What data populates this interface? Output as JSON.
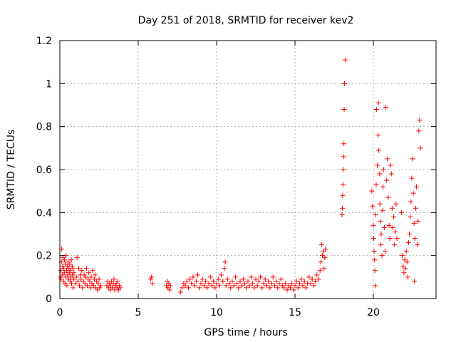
{
  "chart_data": {
    "type": "scatter",
    "title": "Day 251 of 2018, SRMTID for receiver kev2",
    "xlabel": "GPS time / hours",
    "ylabel": "SRMTID / TECUs",
    "xlim": [
      0,
      24
    ],
    "ylim": [
      0,
      1.2
    ],
    "xticks": [
      0,
      5,
      10,
      15,
      20
    ],
    "xtick_labels": [
      "0",
      "5",
      "10",
      "15",
      "20"
    ],
    "yticks": [
      0,
      0.2,
      0.4,
      0.6,
      0.8,
      1,
      1.2
    ],
    "ytick_labels": [
      "0",
      "0.2",
      "0.4",
      "0.6",
      "0.8",
      "1",
      "1.2"
    ],
    "grid": true,
    "marker": "+",
    "color": "#ff0000",
    "series": [
      {
        "name": "kev2",
        "points": [
          [
            0.02,
            0.1
          ],
          [
            0.05,
            0.13
          ],
          [
            0.08,
            0.09
          ],
          [
            0.1,
            0.17
          ],
          [
            0.12,
            0.23
          ],
          [
            0.15,
            0.11
          ],
          [
            0.18,
            0.15
          ],
          [
            0.2,
            0.19
          ],
          [
            0.23,
            0.08
          ],
          [
            0.25,
            0.14
          ],
          [
            0.28,
            0.12
          ],
          [
            0.3,
            0.18
          ],
          [
            0.33,
            0.07
          ],
          [
            0.35,
            0.16
          ],
          [
            0.38,
            0.1
          ],
          [
            0.4,
            0.2
          ],
          [
            0.43,
            0.13
          ],
          [
            0.45,
            0.06
          ],
          [
            0.48,
            0.15
          ],
          [
            0.5,
            0.11
          ],
          [
            0.53,
            0.17
          ],
          [
            0.55,
            0.09
          ],
          [
            0.58,
            0.14
          ],
          [
            0.6,
            0.12
          ],
          [
            0.63,
            0.16
          ],
          [
            0.65,
            0.08
          ],
          [
            0.68,
            0.13
          ],
          [
            0.7,
            0.1
          ],
          [
            0.73,
            0.18
          ],
          [
            0.75,
            0.07
          ],
          [
            0.78,
            0.15
          ],
          [
            0.8,
            0.11
          ],
          [
            0.83,
            0.14
          ],
          [
            0.85,
            0.05
          ],
          [
            0.88,
            0.09
          ],
          [
            0.9,
            0.12
          ],
          [
            1.0,
            0.07
          ],
          [
            1.05,
            0.1
          ],
          [
            1.1,
            0.19
          ],
          [
            1.15,
            0.08
          ],
          [
            1.2,
            0.14
          ],
          [
            1.25,
            0.06
          ],
          [
            1.3,
            0.11
          ],
          [
            1.35,
            0.09
          ],
          [
            1.4,
            0.13
          ],
          [
            1.45,
            0.05
          ],
          [
            1.5,
            0.08
          ],
          [
            1.55,
            0.11
          ],
          [
            1.6,
            0.07
          ],
          [
            1.65,
            0.1
          ],
          [
            1.7,
            0.14
          ],
          [
            1.75,
            0.06
          ],
          [
            1.8,
            0.09
          ],
          [
            1.85,
            0.12
          ],
          [
            1.9,
            0.08
          ],
          [
            1.95,
            0.05
          ],
          [
            2.0,
            0.1
          ],
          [
            2.05,
            0.07
          ],
          [
            2.1,
            0.13
          ],
          [
            2.15,
            0.06
          ],
          [
            2.2,
            0.09
          ],
          [
            2.25,
            0.11
          ],
          [
            2.3,
            0.05
          ],
          [
            2.35,
            0.08
          ],
          [
            2.4,
            0.04
          ],
          [
            2.45,
            0.07
          ],
          [
            2.5,
            0.09
          ],
          [
            2.55,
            0.05
          ],
          [
            2.6,
            0.06
          ],
          [
            3.0,
            0.06
          ],
          [
            3.05,
            0.08
          ],
          [
            3.1,
            0.05
          ],
          [
            3.15,
            0.07
          ],
          [
            3.2,
            0.04
          ],
          [
            3.25,
            0.06
          ],
          [
            3.3,
            0.08
          ],
          [
            3.35,
            0.05
          ],
          [
            3.4,
            0.07
          ],
          [
            3.45,
            0.09
          ],
          [
            3.5,
            0.04
          ],
          [
            3.55,
            0.06
          ],
          [
            3.6,
            0.07
          ],
          [
            3.65,
            0.05
          ],
          [
            3.7,
            0.08
          ],
          [
            3.75,
            0.04
          ],
          [
            3.8,
            0.06
          ],
          [
            3.85,
            0.05
          ],
          [
            5.8,
            0.09
          ],
          [
            5.85,
            0.1
          ],
          [
            5.9,
            0.07
          ],
          [
            6.8,
            0.06
          ],
          [
            6.85,
            0.08
          ],
          [
            6.9,
            0.05
          ],
          [
            6.95,
            0.07
          ],
          [
            7.0,
            0.04
          ],
          [
            7.05,
            0.06
          ],
          [
            7.7,
            0.03
          ],
          [
            7.8,
            0.05
          ],
          [
            7.9,
            0.07
          ],
          [
            8.0,
            0.06
          ],
          [
            8.1,
            0.08
          ],
          [
            8.2,
            0.05
          ],
          [
            8.3,
            0.09
          ],
          [
            8.4,
            0.07
          ],
          [
            8.5,
            0.1
          ],
          [
            8.6,
            0.06
          ],
          [
            8.7,
            0.08
          ],
          [
            8.8,
            0.11
          ],
          [
            8.9,
            0.05
          ],
          [
            9.0,
            0.07
          ],
          [
            9.1,
            0.09
          ],
          [
            9.2,
            0.06
          ],
          [
            9.3,
            0.08
          ],
          [
            9.4,
            0.05
          ],
          [
            9.5,
            0.07
          ],
          [
            9.6,
            0.1
          ],
          [
            9.7,
            0.06
          ],
          [
            9.8,
            0.08
          ],
          [
            9.9,
            0.05
          ],
          [
            10.0,
            0.07
          ],
          [
            10.1,
            0.09
          ],
          [
            10.2,
            0.06
          ],
          [
            10.3,
            0.11
          ],
          [
            10.4,
            0.08
          ],
          [
            10.5,
            0.14
          ],
          [
            10.55,
            0.17
          ],
          [
            10.6,
            0.06
          ],
          [
            10.7,
            0.09
          ],
          [
            10.8,
            0.07
          ],
          [
            10.9,
            0.05
          ],
          [
            11.0,
            0.08
          ],
          [
            11.1,
            0.06
          ],
          [
            11.2,
            0.1
          ],
          [
            11.3,
            0.07
          ],
          [
            11.4,
            0.05
          ],
          [
            11.5,
            0.08
          ],
          [
            11.6,
            0.06
          ],
          [
            11.7,
            0.09
          ],
          [
            11.8,
            0.07
          ],
          [
            11.9,
            0.05
          ],
          [
            12.0,
            0.08
          ],
          [
            12.1,
            0.06
          ],
          [
            12.2,
            0.1
          ],
          [
            12.3,
            0.07
          ],
          [
            12.4,
            0.05
          ],
          [
            12.5,
            0.09
          ],
          [
            12.6,
            0.06
          ],
          [
            12.7,
            0.08
          ],
          [
            12.8,
            0.1
          ],
          [
            12.9,
            0.05
          ],
          [
            13.0,
            0.07
          ],
          [
            13.1,
            0.09
          ],
          [
            13.2,
            0.06
          ],
          [
            13.3,
            0.08
          ],
          [
            13.4,
            0.05
          ],
          [
            13.5,
            0.07
          ],
          [
            13.6,
            0.1
          ],
          [
            13.7,
            0.06
          ],
          [
            13.8,
            0.08
          ],
          [
            13.9,
            0.05
          ],
          [
            14.0,
            0.07
          ],
          [
            14.1,
            0.09
          ],
          [
            14.2,
            0.06
          ],
          [
            14.3,
            0.05
          ],
          [
            14.4,
            0.07
          ],
          [
            14.5,
            0.04
          ],
          [
            14.6,
            0.06
          ],
          [
            14.7,
            0.05
          ],
          [
            14.8,
            0.07
          ],
          [
            14.9,
            0.04
          ],
          [
            15.0,
            0.06
          ],
          [
            15.1,
            0.08
          ],
          [
            15.2,
            0.05
          ],
          [
            15.3,
            0.07
          ],
          [
            15.4,
            0.09
          ],
          [
            15.5,
            0.06
          ],
          [
            15.6,
            0.08
          ],
          [
            15.7,
            0.05
          ],
          [
            15.8,
            0.07
          ],
          [
            15.9,
            0.1
          ],
          [
            16.0,
            0.07
          ],
          [
            16.1,
            0.09
          ],
          [
            16.2,
            0.06
          ],
          [
            16.3,
            0.08
          ],
          [
            16.4,
            0.11
          ],
          [
            16.5,
            0.09
          ],
          [
            16.6,
            0.13
          ],
          [
            16.65,
            0.17
          ],
          [
            16.7,
            0.25
          ],
          [
            16.75,
            0.2
          ],
          [
            16.8,
            0.22
          ],
          [
            16.85,
            0.14
          ],
          [
            16.9,
            0.19
          ],
          [
            16.95,
            0.23
          ],
          [
            18.0,
            0.39
          ],
          [
            18.02,
            0.42
          ],
          [
            18.04,
            0.48
          ],
          [
            18.06,
            0.53
          ],
          [
            18.08,
            0.6
          ],
          [
            18.1,
            0.66
          ],
          [
            18.12,
            0.72
          ],
          [
            18.14,
            0.88
          ],
          [
            18.16,
            1.0
          ],
          [
            18.2,
            1.11
          ],
          [
            19.9,
            0.5
          ],
          [
            19.95,
            0.43
          ],
          [
            20.0,
            0.34
          ],
          [
            20.02,
            0.28
          ],
          [
            20.05,
            0.22
          ],
          [
            20.08,
            0.18
          ],
          [
            20.1,
            0.13
          ],
          [
            20.12,
            0.06
          ],
          [
            20.15,
            0.39
          ],
          [
            20.18,
            0.53
          ],
          [
            20.2,
            0.88
          ],
          [
            20.25,
            0.62
          ],
          [
            20.3,
            0.76
          ],
          [
            20.32,
            0.91
          ],
          [
            20.35,
            0.69
          ],
          [
            20.4,
            0.58
          ],
          [
            20.42,
            0.44
          ],
          [
            20.45,
            0.36
          ],
          [
            20.48,
            0.25
          ],
          [
            20.5,
            0.3
          ],
          [
            20.55,
            0.2
          ],
          [
            20.6,
            0.41
          ],
          [
            20.62,
            0.52
          ],
          [
            20.65,
            0.6
          ],
          [
            20.7,
            0.33
          ],
          [
            20.75,
            0.22
          ],
          [
            20.8,
            0.89
          ],
          [
            20.85,
            0.55
          ],
          [
            20.9,
            0.65
          ],
          [
            20.95,
            0.47
          ],
          [
            21.0,
            0.34
          ],
          [
            21.05,
            0.28
          ],
          [
            21.1,
            0.62
          ],
          [
            21.15,
            0.58
          ],
          [
            21.2,
            0.42
          ],
          [
            21.25,
            0.33
          ],
          [
            21.3,
            0.38
          ],
          [
            21.35,
            0.25
          ],
          [
            21.4,
            0.31
          ],
          [
            21.45,
            0.44
          ],
          [
            21.5,
            0.28
          ],
          [
            21.8,
            0.4
          ],
          [
            21.85,
            0.2
          ],
          [
            21.9,
            0.15
          ],
          [
            21.95,
            0.12
          ],
          [
            22.0,
            0.18
          ],
          [
            22.05,
            0.14
          ],
          [
            22.1,
            0.22
          ],
          [
            22.15,
            0.17
          ],
          [
            22.2,
            0.1
          ],
          [
            22.25,
            0.26
          ],
          [
            22.3,
            0.3
          ],
          [
            22.35,
            0.38
          ],
          [
            22.4,
            0.45
          ],
          [
            22.45,
            0.56
          ],
          [
            22.5,
            0.65
          ],
          [
            22.55,
            0.49
          ],
          [
            22.6,
            0.35
          ],
          [
            22.62,
            0.08
          ],
          [
            22.65,
            0.28
          ],
          [
            22.7,
            0.42
          ],
          [
            22.75,
            0.52
          ],
          [
            22.8,
            0.25
          ],
          [
            22.85,
            0.36
          ],
          [
            22.9,
            0.78
          ],
          [
            22.95,
            0.83
          ],
          [
            23.0,
            0.7
          ]
        ]
      }
    ]
  }
}
